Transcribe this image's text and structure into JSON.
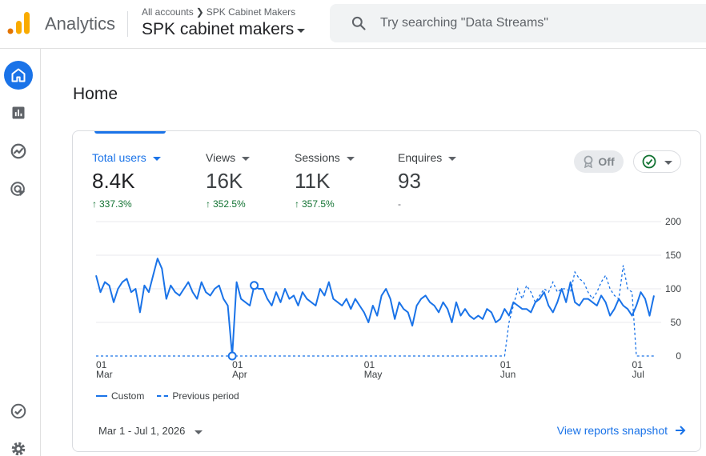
{
  "header": {
    "app_title": "Analytics",
    "breadcrumb_root": "All accounts",
    "breadcrumb_account": "SPK Cabinet Makers",
    "property_name": "SPK cabinet makers",
    "search_placeholder": "Try searching \"Data Streams\""
  },
  "rail": {
    "items": [
      {
        "icon": "home-icon",
        "active": true
      },
      {
        "icon": "reports-icon",
        "active": false
      },
      {
        "icon": "explore-icon",
        "active": false
      },
      {
        "icon": "advertising-icon",
        "active": false
      }
    ],
    "bottom_items": [
      {
        "icon": "check-circle-icon"
      },
      {
        "icon": "settings-icon"
      }
    ]
  },
  "page": {
    "title": "Home"
  },
  "card": {
    "metrics": [
      {
        "label": "Total users",
        "value": "8.4K",
        "change": "337.3%",
        "active": true
      },
      {
        "label": "Views",
        "value": "16K",
        "change": "352.5%",
        "active": false
      },
      {
        "label": "Sessions",
        "value": "11K",
        "change": "357.5%",
        "active": false
      },
      {
        "label": "Enquires",
        "value": "93",
        "change": "-",
        "active": false
      }
    ],
    "off_chip_label": "Off",
    "legend": {
      "custom": "Custom",
      "previous": "Previous period"
    },
    "date_range": "Mar 1 - Jul 1, 2026",
    "view_link": "View reports snapshot"
  },
  "colors": {
    "accent": "#1a73e8",
    "positive": "#137333",
    "logo_orange": "#f9ab00",
    "logo_dark": "#e37400"
  },
  "chart_data": {
    "type": "line",
    "ylim": [
      0,
      200
    ],
    "y_ticks": [
      "0",
      "50",
      "100",
      "150",
      "200"
    ],
    "x_ticks": [
      {
        "day": "01",
        "month": "Mar",
        "index": 0
      },
      {
        "day": "01",
        "month": "Apr",
        "index": 31
      },
      {
        "day": "01",
        "month": "May",
        "index": 61
      },
      {
        "day": "01",
        "month": "Jun",
        "index": 92
      },
      {
        "day": "01",
        "month": "Jul",
        "index": 122
      }
    ],
    "series": [
      {
        "name": "Custom",
        "style": "solid",
        "values": [
          120,
          95,
          110,
          105,
          80,
          100,
          110,
          115,
          95,
          100,
          65,
          105,
          95,
          120,
          145,
          130,
          85,
          105,
          95,
          90,
          100,
          110,
          95,
          85,
          110,
          95,
          90,
          100,
          105,
          85,
          75,
          0,
          110,
          85,
          80,
          75,
          105,
          100,
          100,
          85,
          75,
          95,
          80,
          100,
          85,
          90,
          75,
          95,
          85,
          80,
          75,
          100,
          90,
          110,
          85,
          80,
          75,
          85,
          70,
          85,
          75,
          65,
          50,
          75,
          60,
          90,
          100,
          85,
          55,
          80,
          70,
          65,
          45,
          75,
          85,
          90,
          80,
          75,
          65,
          80,
          70,
          50,
          80,
          60,
          70,
          60,
          55,
          60,
          55,
          70,
          65,
          50,
          55,
          70,
          60,
          80,
          75,
          70,
          70,
          65,
          80,
          85,
          95,
          75,
          65,
          80,
          100,
          80,
          110,
          80,
          75,
          85,
          85,
          80,
          75,
          90,
          80,
          60,
          70,
          85,
          75,
          70,
          60,
          75,
          95,
          85,
          60,
          90
        ]
      },
      {
        "name": "Previous period",
        "style": "dashed",
        "values": [
          0,
          0,
          0,
          0,
          0,
          0,
          0,
          0,
          0,
          0,
          0,
          0,
          0,
          0,
          0,
          0,
          0,
          0,
          0,
          0,
          0,
          0,
          0,
          0,
          0,
          0,
          0,
          0,
          0,
          0,
          0,
          0,
          0,
          0,
          0,
          0,
          0,
          0,
          0,
          0,
          0,
          0,
          0,
          0,
          0,
          0,
          0,
          0,
          0,
          0,
          0,
          0,
          0,
          0,
          0,
          0,
          0,
          0,
          0,
          0,
          0,
          0,
          0,
          0,
          0,
          0,
          0,
          0,
          0,
          0,
          0,
          0,
          0,
          0,
          0,
          0,
          0,
          0,
          0,
          0,
          0,
          0,
          0,
          0,
          0,
          0,
          0,
          0,
          0,
          0,
          0,
          0,
          0,
          0,
          0,
          0,
          0,
          0,
          0,
          0,
          0,
          0,
          0,
          0,
          0,
          0,
          0,
          0,
          0,
          0,
          0,
          0,
          0,
          0,
          0,
          0,
          0,
          0,
          0,
          0,
          0,
          0,
          0,
          0,
          0,
          0,
          0,
          0,
          0,
          0,
          0,
          0
        ]
      }
    ],
    "previous_tail_values": [
      0,
      50,
      75,
      100,
      85,
      105,
      95,
      80,
      90,
      100,
      95,
      110,
      95,
      100,
      100,
      95,
      125,
      115,
      110,
      95,
      85,
      95,
      110,
      120,
      100,
      90,
      85,
      135,
      100,
      95
    ],
    "previous_tail_start_index": 93,
    "markers": [
      {
        "index": 31,
        "series": "Custom"
      },
      {
        "index": 36,
        "series": "Custom"
      }
    ],
    "grid": true
  }
}
